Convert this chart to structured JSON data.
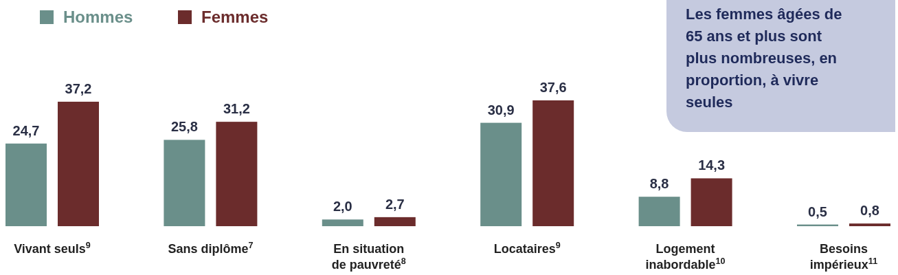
{
  "chart_data": {
    "type": "bar",
    "categories": [
      "Vivant seuls$^{9}$",
      "Sans diplôme$^{7}$",
      "En situation de pauvreté$^{8}$",
      "Locataires$^{9}$",
      "Logement inabordable$^{10}$",
      "Besoins impérieux$^{11}$"
    ],
    "series": [
      {
        "name": "Hommes",
        "color": "#6a8f8a",
        "values": [
          24.7,
          25.8,
          2.0,
          30.9,
          8.8,
          0.5
        ],
        "value_labels": [
          "24,7",
          "25,8",
          "2,0",
          "30,9",
          "8,8",
          "0,5"
        ]
      },
      {
        "name": "Femmes",
        "color": "#6b2c2c",
        "values": [
          37.2,
          31.2,
          2.7,
          37.6,
          14.3,
          0.8
        ],
        "value_labels": [
          "37,2",
          "31,2",
          "2,7",
          "37,6",
          "14,3",
          "0,8"
        ]
      }
    ],
    "legend": "top left",
    "annotations": [
      "Les femmes âgées de 65 ans et plus sont plus nombreuses, en proportion, à vivre seules"
    ]
  }
}
